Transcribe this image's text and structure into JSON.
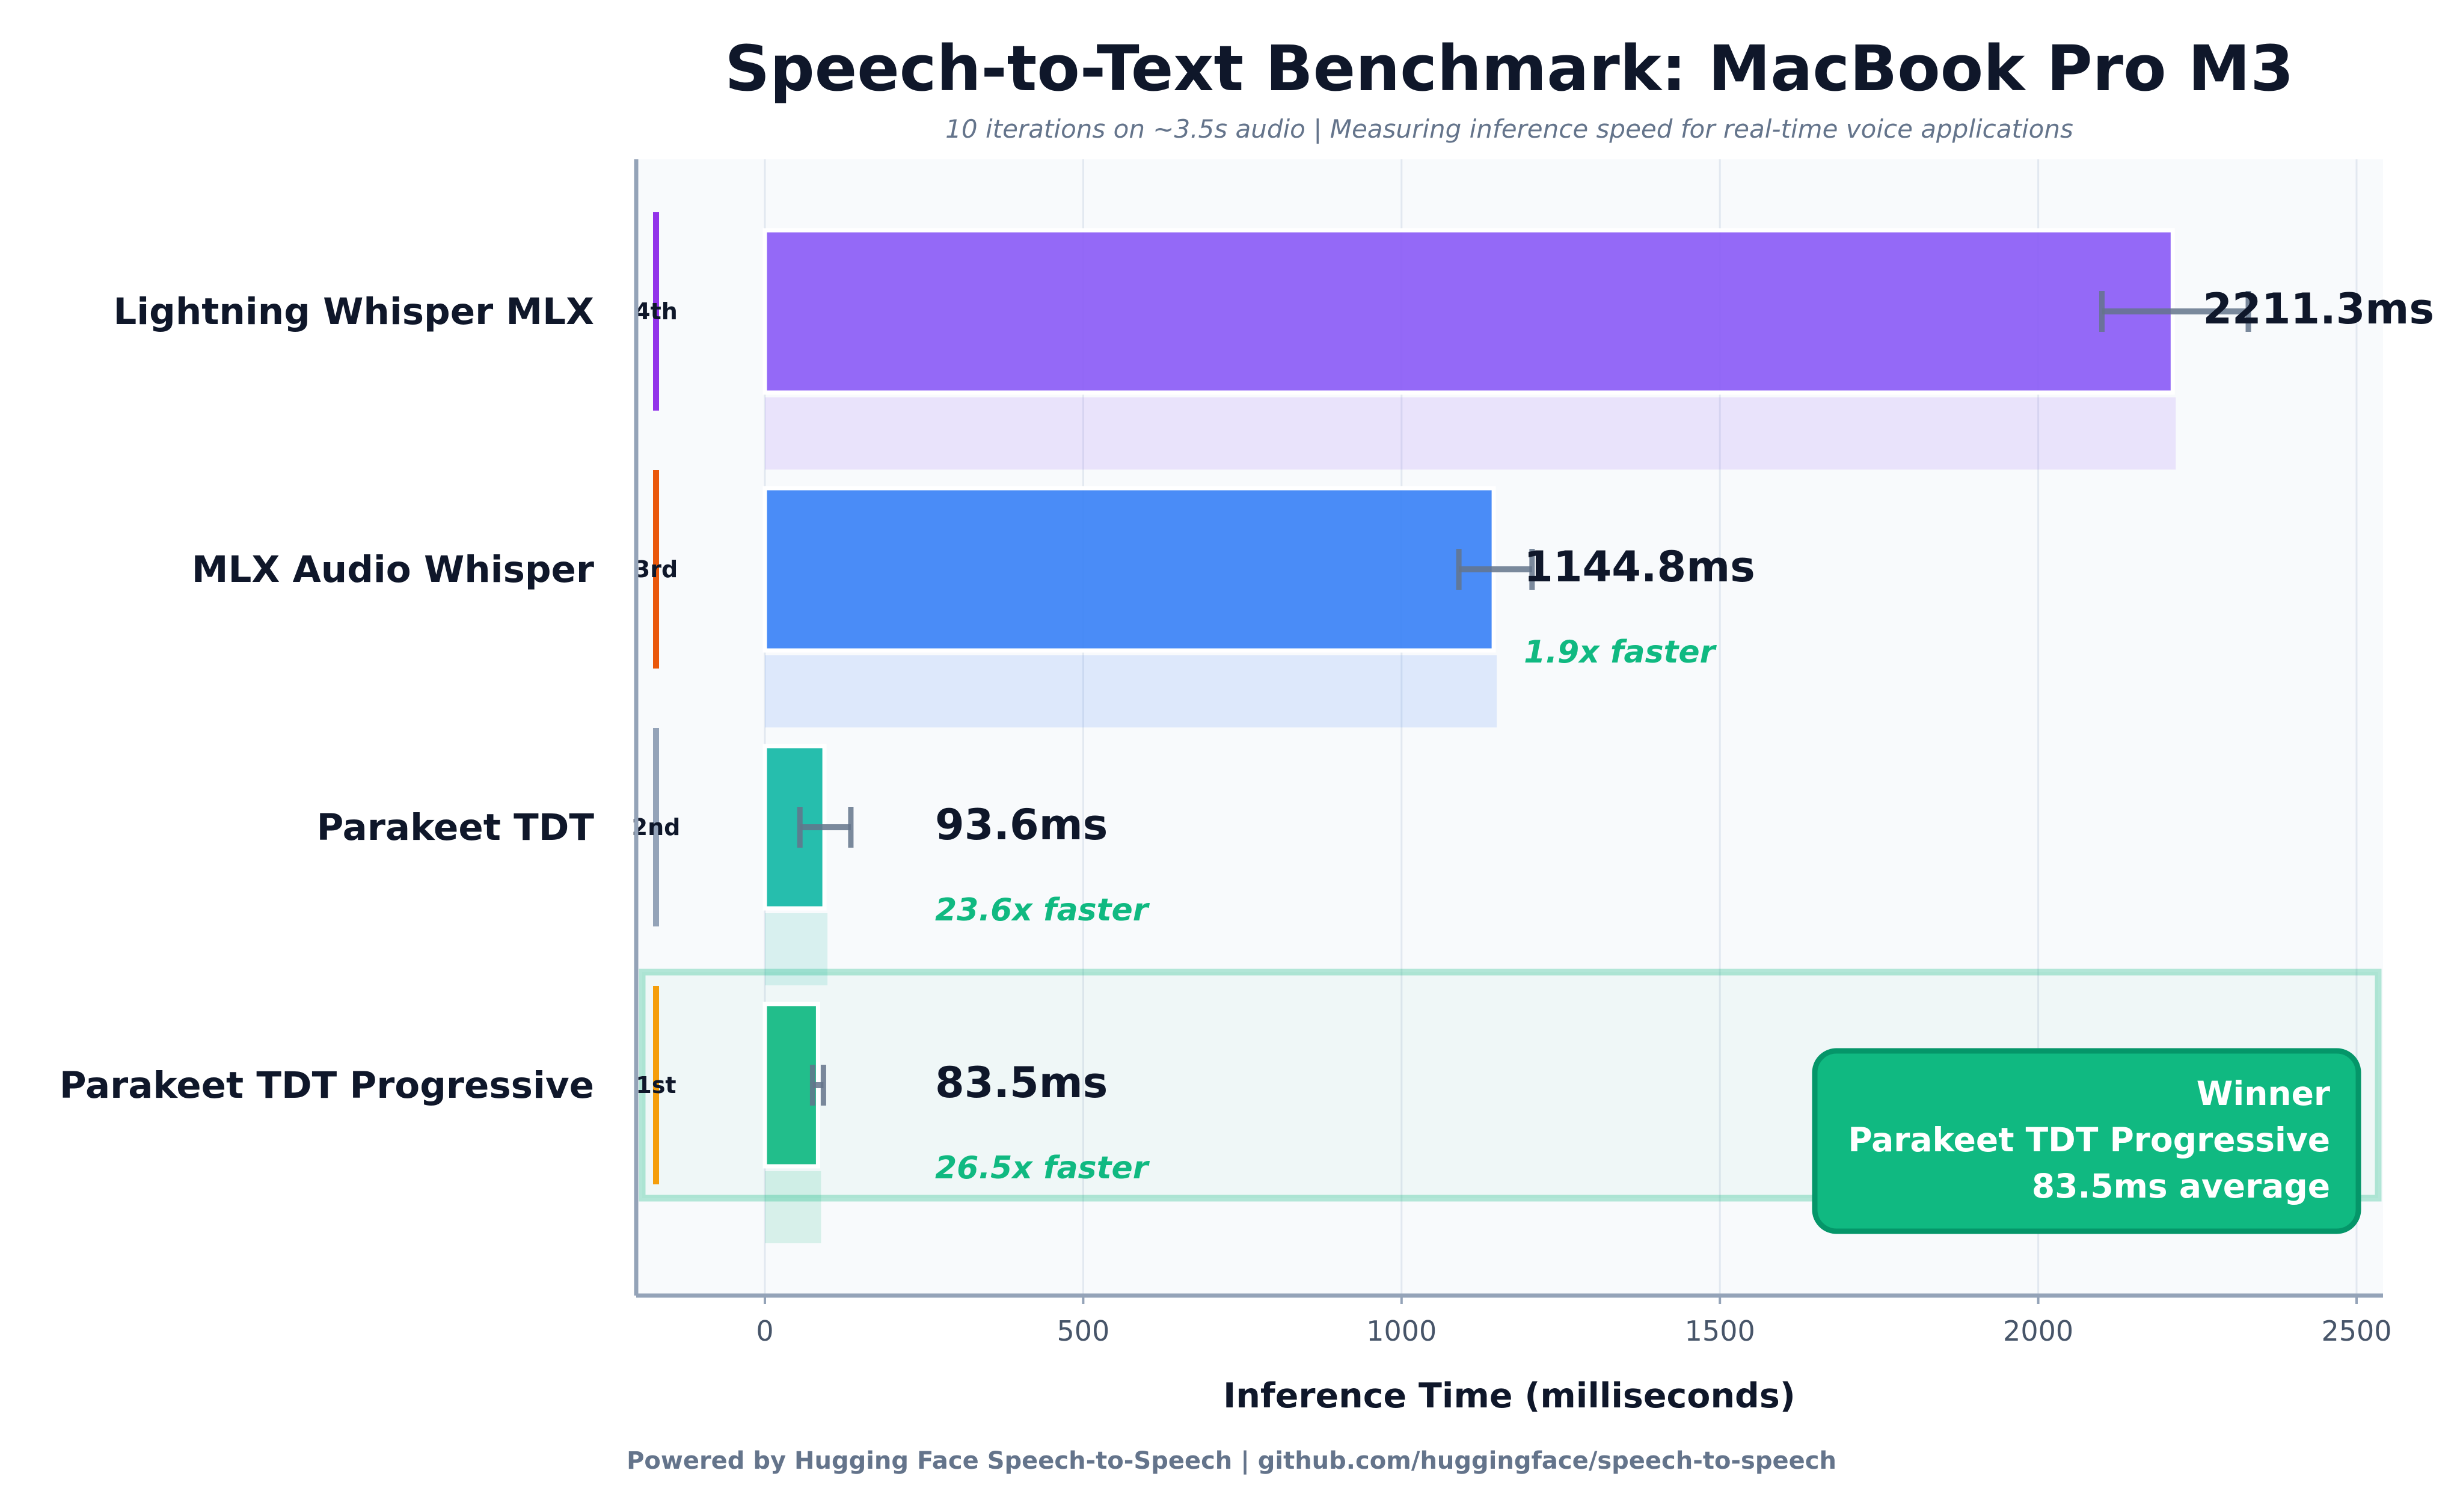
{
  "chart_data": {
    "type": "bar",
    "orientation": "horizontal",
    "title": "Speech-to-Text Benchmark: MacBook Pro M3",
    "subtitle": "10 iterations on ~3.5s audio  |  Measuring inference speed for real-time voice applications",
    "xlabel": "Inference Time (milliseconds)",
    "xlim": [
      0,
      2500
    ],
    "xticks": [
      0,
      500,
      1000,
      1500,
      2000,
      2500
    ],
    "xtick_labels": [
      "0",
      "500",
      "1000",
      "1500",
      "2000",
      "2500"
    ],
    "grid": "vertical",
    "categories": [
      "Lightning Whisper MLX",
      "MLX Audio Whisper",
      "Parakeet TDT",
      "Parakeet TDT Progressive"
    ],
    "values": [
      2211.3,
      1144.8,
      93.6,
      83.5
    ],
    "value_labels": [
      "2211.3ms",
      "1144.8ms",
      "93.6ms",
      "83.5ms"
    ],
    "error_ranges": [
      [
        2100,
        2330
      ],
      [
        1090,
        1205
      ],
      [
        55,
        135
      ],
      [
        75,
        92
      ]
    ],
    "ranks": [
      "4th",
      "3rd",
      "2nd",
      "1st"
    ],
    "speedup_labels": [
      "",
      "1.9x faster",
      "23.6x faster",
      "26.5x faster"
    ],
    "colors": [
      "#8b5cf6",
      "#3b82f6",
      "#14b8a6",
      "#10b981"
    ],
    "rank_colors": [
      "#9333ea",
      "#ea580c",
      "#94a3b8",
      "#f59e0b"
    ],
    "winner_box": {
      "lines": [
        "Winner",
        "Parakeet TDT Progressive",
        "83.5ms average"
      ],
      "color": "#10b981"
    },
    "footer": "Powered by Hugging Face Speech-to-Speech  |  github.com/huggingface/speech-to-speech"
  }
}
